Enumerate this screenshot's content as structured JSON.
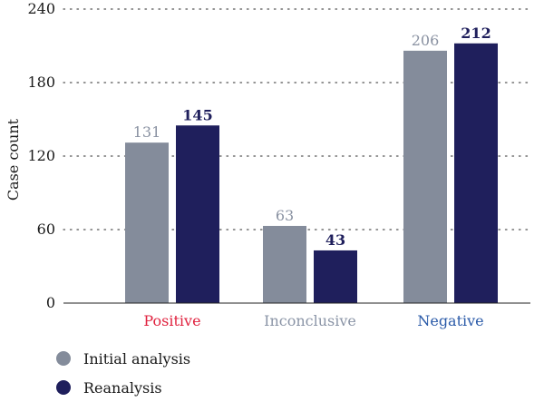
{
  "chart_data": {
    "type": "bar",
    "ylabel": "Case count",
    "ylim": [
      0,
      240
    ],
    "yticks": [
      "0",
      "60",
      "120",
      "180",
      "240"
    ],
    "grid": "horizontal dotted",
    "legend_position": "bottom-left",
    "categories": [
      "Positive",
      "Inconclusive",
      "Negative"
    ],
    "category_colors": [
      "#e0223f",
      "#8a94a6",
      "#2a5aa8"
    ],
    "series": [
      {
        "name": "Initial analysis",
        "color": "#848c9b",
        "values": [
          131,
          63,
          206
        ],
        "labels": [
          "131",
          "63",
          "206"
        ],
        "label_color": "#8a92a2",
        "label_bold": false
      },
      {
        "name": "Reanalysis",
        "color": "#1f1f5c",
        "values": [
          145,
          43,
          212
        ],
        "labels": [
          "145",
          "43",
          "212"
        ],
        "label_color": "#1f1f5c",
        "label_bold": true
      }
    ]
  }
}
